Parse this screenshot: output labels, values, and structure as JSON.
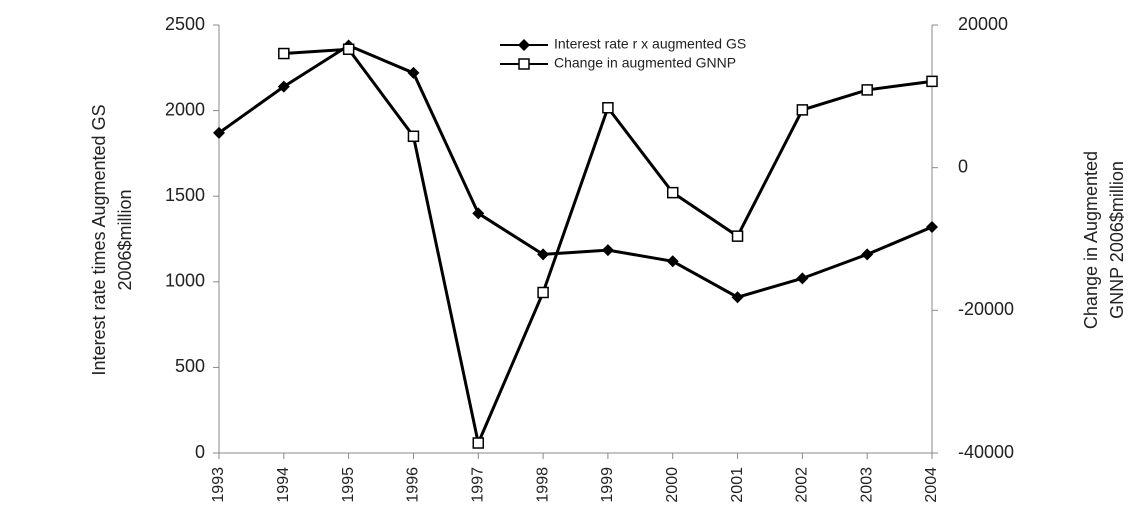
{
  "chart_data": {
    "type": "line",
    "categories": [
      "1993",
      "1994",
      "1995",
      "1996",
      "1997",
      "1998",
      "1999",
      "2000",
      "2001",
      "2002",
      "2003",
      "2004"
    ],
    "ylabel": [
      "Interest rate times Augmented GS",
      "2006$million"
    ],
    "y2label": [
      "Change in Augmented",
      "GNNP 2006$million"
    ],
    "ylim": [
      0,
      2500
    ],
    "yticks": [
      0,
      500,
      1000,
      1500,
      2000,
      2500
    ],
    "y2lim": [
      -40000,
      20000
    ],
    "y2ticks": [
      -40000,
      -20000,
      0,
      20000
    ],
    "legend": "top",
    "series": [
      {
        "name": "Interest rate r x augmented GS",
        "color": "#000000",
        "marker": "diamond",
        "values": [
          1870,
          2140,
          2380,
          2220,
          1400,
          1160,
          1185,
          1120,
          910,
          1020,
          1160,
          1320
        ]
      },
      {
        "name": "Change in augmented GNNP",
        "color": "#000000",
        "marker": "square",
        "axis": "y2",
        "values": [
          null,
          16000,
          16600,
          4400,
          -38600,
          -17500,
          8400,
          -3500,
          -9600,
          8100,
          10900,
          12100
        ]
      }
    ]
  }
}
